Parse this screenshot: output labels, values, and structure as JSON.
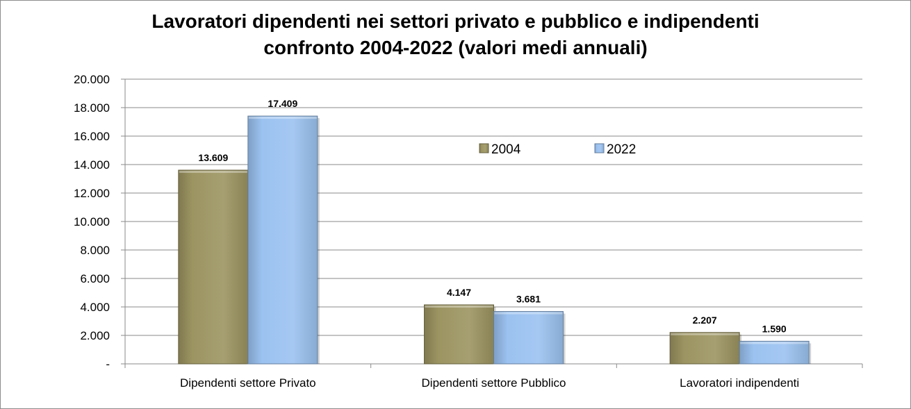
{
  "chart_data": {
    "type": "bar",
    "title_line1": "Lavoratori dipendenti nei settori privato e pubblico e indipendenti",
    "title_line2": "confronto 2004-2022 (valori medi annuali)",
    "xlabel": "",
    "ylabel": "",
    "categories": [
      "Dipendenti settore Privato",
      "Dipendenti settore Pubblico",
      "Lavoratori indipendenti"
    ],
    "series": [
      {
        "name": "2004",
        "values": [
          13609,
          4147,
          2207
        ],
        "labels": [
          "13.609",
          "4.147",
          "2.207"
        ],
        "color": "#9c9461"
      },
      {
        "name": "2022",
        "values": [
          17409,
          3681,
          1590
        ],
        "labels": [
          "17.409",
          "3.681",
          "1.590"
        ],
        "color": "#9bc2f0"
      }
    ],
    "ylim": [
      0,
      20000
    ],
    "yticks": [
      0,
      2000,
      4000,
      6000,
      8000,
      10000,
      12000,
      14000,
      16000,
      18000,
      20000
    ],
    "ytick_labels": [
      "-",
      "2.000",
      "4.000",
      "6.000",
      "8.000",
      "10.000",
      "12.000",
      "14.000",
      "16.000",
      "18.000",
      "20.000"
    ],
    "grid": true,
    "legend": "inside-top-center"
  }
}
